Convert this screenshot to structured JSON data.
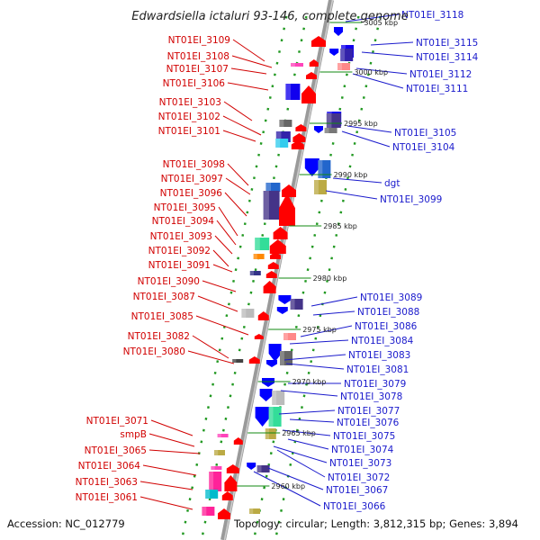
{
  "title": "Edwardsiella ictaluri 93-146, complete genome",
  "footer": {
    "accession": "Accession: NC_012779",
    "summary": "Topology: circular; Length: 3,812,315 bp; Genes: 3,894"
  },
  "colors": {
    "forward_label": "#d10000",
    "reverse_label": "#1a1acc",
    "forward_arrow": "#ff0000",
    "reverse_arrow": "#0000ff",
    "backbone": "#9a9a9a",
    "dots": "#229922"
  },
  "scale_labels": [
    "3005 kbp",
    "3000 kbp",
    "2995 kbp",
    "2990 kbp",
    "2985 kbp",
    "2980 kbp",
    "2975 kbp",
    "2970 kbp",
    "2965 kbp",
    "2960 kbp"
  ],
  "forward_genes": [
    "NT01EI_3109",
    "NT01EI_3108",
    "NT01EI_3107",
    "NT01EI_3106",
    "NT01EI_3103",
    "NT01EI_3102",
    "NT01EI_3101",
    "NT01EI_3098",
    "NT01EI_3097",
    "NT01EI_3096",
    "NT01EI_3095",
    "NT01EI_3094",
    "NT01EI_3093",
    "NT01EI_3092",
    "NT01EI_3091",
    "NT01EI_3090",
    "NT01EI_3087",
    "NT01EI_3085",
    "NT01EI_3082",
    "NT01EI_3080",
    "NT01EI_3071",
    "smpB",
    "NT01EI_3065",
    "NT01EI_3064",
    "NT01EI_3063",
    "NT01EI_3061"
  ],
  "reverse_genes": [
    "NT01EI_3118",
    "NT01EI_3115",
    "NT01EI_3114",
    "NT01EI_3112",
    "NT01EI_3111",
    "NT01EI_3105",
    "NT01EI_3104",
    "dgt",
    "NT01EI_3099",
    "NT01EI_3089",
    "NT01EI_3088",
    "NT01EI_3086",
    "NT01EI_3084",
    "NT01EI_3083",
    "NT01EI_3081",
    "NT01EI_3079",
    "NT01EI_3078",
    "NT01EI_3077",
    "NT01EI_3076",
    "NT01EI_3075",
    "NT01EI_3074",
    "NT01EI_3073",
    "NT01EI_3072",
    "NT01EI_3067",
    "NT01EI_3066"
  ]
}
